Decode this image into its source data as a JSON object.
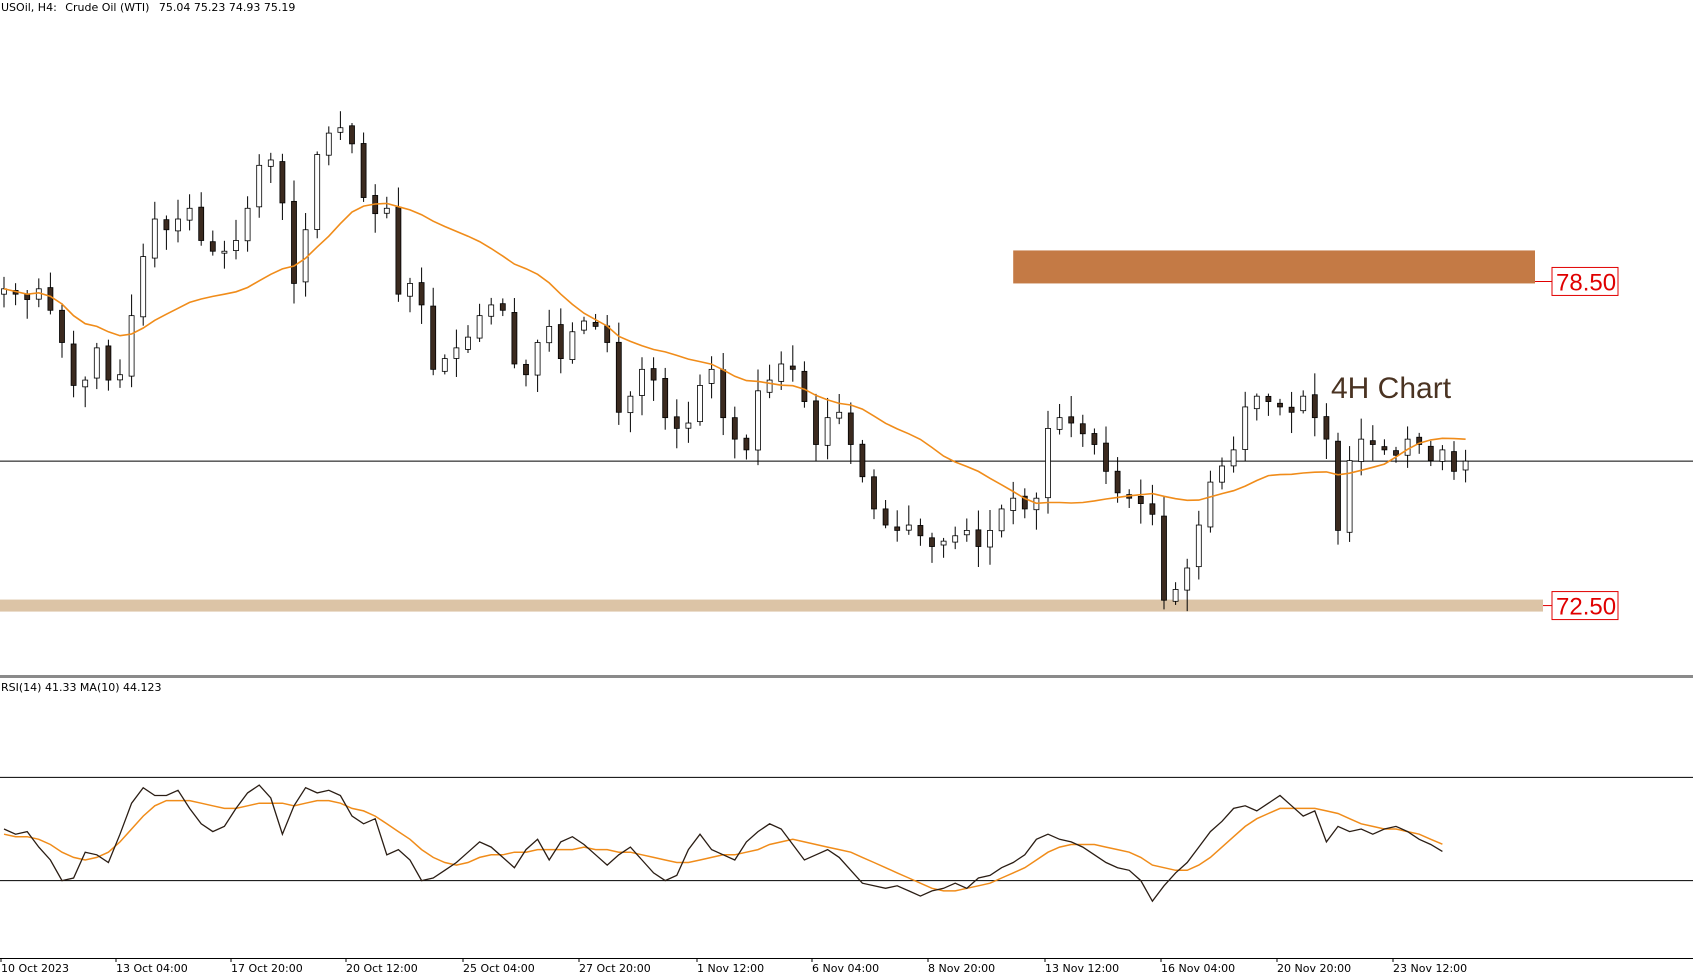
{
  "header": {
    "symbol": "USOil, H4:",
    "description": "Crude Oil (WTI)",
    "ohlc": "75.04 75.23 74.93 75.19"
  },
  "annotation": "4H Chart",
  "colors": {
    "bull_body": "#ffffff",
    "bear_body": "#3b2a1f",
    "ma_line": "#f08c1a",
    "rsi_line": "#2a1d14",
    "resistance_zone": "#c47a45",
    "support_zone": "#dcc4a6",
    "price_label": "#e00000"
  },
  "chart_data": [
    {
      "type": "candlestick",
      "panel": "price",
      "ylim": [
        71.3,
        83.5
      ],
      "x_labels": [
        "10 Oct 2023",
        "13 Oct 04:00",
        "17 Oct 20:00",
        "20 Oct 12:00",
        "25 Oct 04:00",
        "27 Oct 20:00",
        "1 Nov 12:00",
        "6 Nov 04:00",
        "8 Nov 20:00",
        "13 Nov 12:00",
        "16 Nov 04:00",
        "20 Nov 20:00",
        "23 Nov 12:00"
      ],
      "current_price": 75.19,
      "close_series": [
        78.4,
        78.3,
        78.2,
        78.4,
        78.0,
        77.4,
        76.6,
        76.7,
        77.3,
        76.7,
        76.8,
        77.9,
        79.0,
        79.7,
        79.5,
        79.7,
        79.9,
        79.3,
        79.1,
        79.1,
        79.3,
        79.9,
        80.7,
        80.8,
        80.0,
        78.5,
        79.5,
        80.9,
        81.3,
        81.4,
        81.1,
        80.1,
        79.8,
        79.9,
        78.3,
        78.5,
        78.1,
        76.9,
        77.1,
        77.3,
        77.5,
        77.9,
        78.1,
        78.0,
        77.0,
        76.8,
        77.4,
        77.7,
        77.1,
        77.6,
        77.8,
        77.7,
        77.4,
        76.1,
        76.4,
        76.9,
        76.7,
        76.0,
        75.8,
        75.9,
        76.6,
        76.9,
        76.0,
        75.6,
        75.4,
        76.5,
        76.7,
        77.0,
        76.9,
        76.3,
        75.5,
        76.0,
        76.1,
        75.5,
        74.9,
        74.3,
        74.0,
        73.9,
        74.0,
        73.8,
        73.6,
        73.7,
        73.8,
        73.9,
        73.6,
        73.9,
        74.3,
        74.5,
        74.3,
        74.5,
        75.8,
        76.0,
        75.9,
        75.7,
        75.5,
        75.0,
        74.6,
        74.5,
        74.4,
        74.2,
        72.6,
        72.8,
        73.2,
        74.0,
        74.8,
        75.1,
        75.4,
        76.2,
        76.4,
        76.3,
        76.2,
        76.1,
        76.4,
        76.0,
        75.6,
        73.9,
        75.2,
        75.6,
        75.5,
        75.4,
        75.3,
        75.6,
        75.5,
        75.2,
        75.4,
        75.0,
        75.19
      ],
      "ma_period": 20,
      "zones": [
        {
          "label": "78.50",
          "price": 78.5
        },
        {
          "label": "72.50",
          "price": 72.5
        }
      ]
    },
    {
      "type": "line",
      "panel": "indicator",
      "title": "RSI(14) 41.33 MA(10) 44.123",
      "ylim": [
        0,
        100
      ],
      "levels": [
        70,
        30
      ],
      "series": [
        {
          "name": "RSI(14)",
          "values": [
            50,
            48,
            49,
            43,
            38,
            30,
            31,
            41,
            40,
            37,
            48,
            60,
            66,
            63,
            63,
            65,
            58,
            52,
            49,
            51,
            58,
            64,
            67,
            62,
            48,
            59,
            66,
            64,
            65,
            63,
            55,
            52,
            54,
            40,
            42,
            38,
            30,
            31,
            34,
            37,
            41,
            45,
            43,
            39,
            35,
            42,
            46,
            38,
            45,
            47,
            44,
            40,
            36,
            40,
            43,
            38,
            33,
            30,
            32,
            42,
            48,
            42,
            40,
            38,
            45,
            49,
            52,
            50,
            44,
            38,
            40,
            42,
            39,
            34,
            29,
            28,
            27,
            28,
            26,
            24,
            26,
            27,
            29,
            27,
            31,
            32,
            35,
            37,
            40,
            46,
            48,
            46,
            45,
            43,
            40,
            37,
            35,
            34,
            30,
            22,
            28,
            33,
            37,
            43,
            49,
            53,
            58,
            59,
            57,
            60,
            63,
            59,
            55,
            57,
            45,
            51,
            49,
            50,
            48,
            50,
            51,
            49,
            46,
            44,
            41.33
          ]
        },
        {
          "name": "MA(10)",
          "values": [
            48,
            47,
            47,
            46,
            44,
            41,
            39,
            38,
            39,
            41,
            45,
            50,
            55,
            59,
            61,
            61,
            61,
            60,
            59,
            58,
            58,
            59,
            60,
            60,
            60,
            59,
            60,
            61,
            61,
            60,
            58,
            57,
            55,
            52,
            49,
            46,
            42,
            39,
            37,
            36,
            37,
            39,
            40,
            40,
            41,
            41,
            42,
            42,
            42,
            42,
            43,
            42,
            42,
            41,
            41,
            40,
            39,
            38,
            37,
            37,
            38,
            39,
            40,
            40,
            41,
            42,
            44,
            45,
            46,
            45,
            44,
            43,
            42,
            41,
            39,
            37,
            35,
            33,
            31,
            29,
            27,
            26,
            26,
            27,
            28,
            29,
            31,
            33,
            35,
            38,
            41,
            43,
            44,
            44,
            44,
            43,
            42,
            41,
            39,
            36,
            35,
            34,
            34,
            36,
            39,
            43,
            47,
            51,
            54,
            56,
            58,
            58,
            58,
            58,
            57,
            56,
            54,
            52,
            51,
            50,
            50,
            49,
            48,
            46,
            44.123
          ]
        }
      ]
    }
  ]
}
